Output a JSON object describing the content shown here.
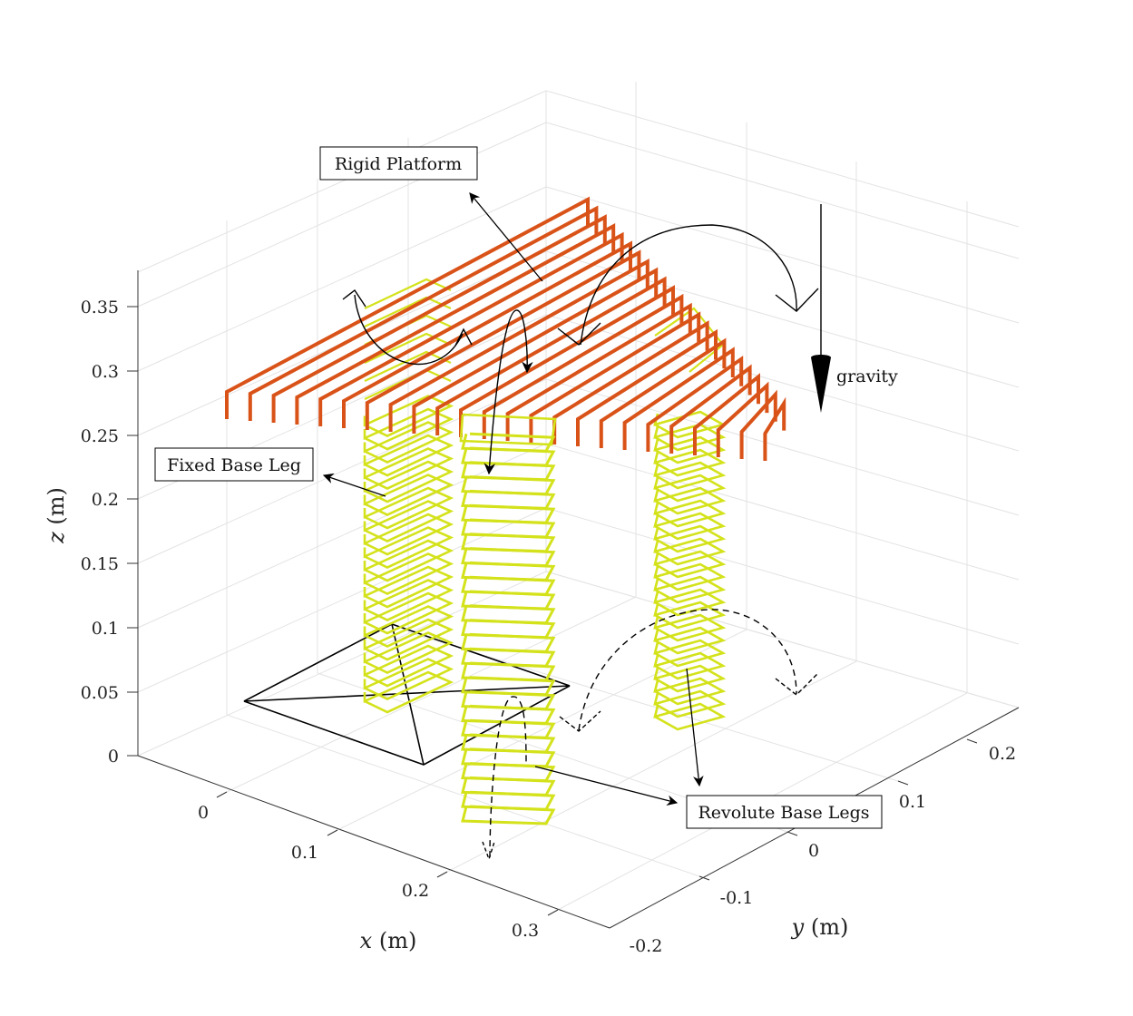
{
  "figure": {
    "z_axis": {
      "label_var": "z",
      "label_unit": " (m)",
      "ticks": [
        "0",
        "0.05",
        "0.1",
        "0.15",
        "0.2",
        "0.25",
        "0.3",
        "0.35"
      ]
    },
    "x_axis": {
      "label_var": "x",
      "label_unit": " (m)",
      "ticks": [
        "0",
        "0.1",
        "0.2",
        "0.3"
      ]
    },
    "y_axis": {
      "label_var": "y",
      "label_unit": " (m)",
      "ticks": [
        "-0.2",
        "-0.1",
        "0",
        "0.1",
        "0.2"
      ]
    },
    "annotations": {
      "rigid_platform": "Rigid Platform",
      "fixed_base_leg": "Fixed Base Leg",
      "revolute_base_legs": "Revolute Base Legs",
      "gravity": "gravity"
    },
    "colors": {
      "platform": "#d95319",
      "legs": "#d4e21b",
      "grid": "#e3e3e3",
      "axis": "#333333"
    }
  },
  "chart_data": {
    "type": "3d-line",
    "title": "",
    "xlabel": "x (m)",
    "ylabel": "y (m)",
    "zlabel": "z (m)",
    "xlim": [
      -0.07,
      0.35
    ],
    "ylim": [
      -0.2,
      0.25
    ],
    "zlim": [
      0,
      0.38
    ],
    "grid": true,
    "z_ticks": [
      0,
      0.05,
      0.1,
      0.15,
      0.2,
      0.25,
      0.3,
      0.35
    ],
    "x_ticks": [
      0,
      0.1,
      0.2,
      0.3
    ],
    "y_ticks": [
      -0.2,
      -0.1,
      0,
      0.1,
      0.2
    ],
    "series": [
      {
        "name": "Rigid Platform",
        "height_range": [
          0.25,
          0.35
        ]
      },
      {
        "name": "Fixed Base Leg",
        "height_range": [
          0.04,
          0.25
        ]
      },
      {
        "name": "Revolute Base Legs",
        "height_range": [
          0.0,
          0.25
        ]
      }
    ]
  }
}
